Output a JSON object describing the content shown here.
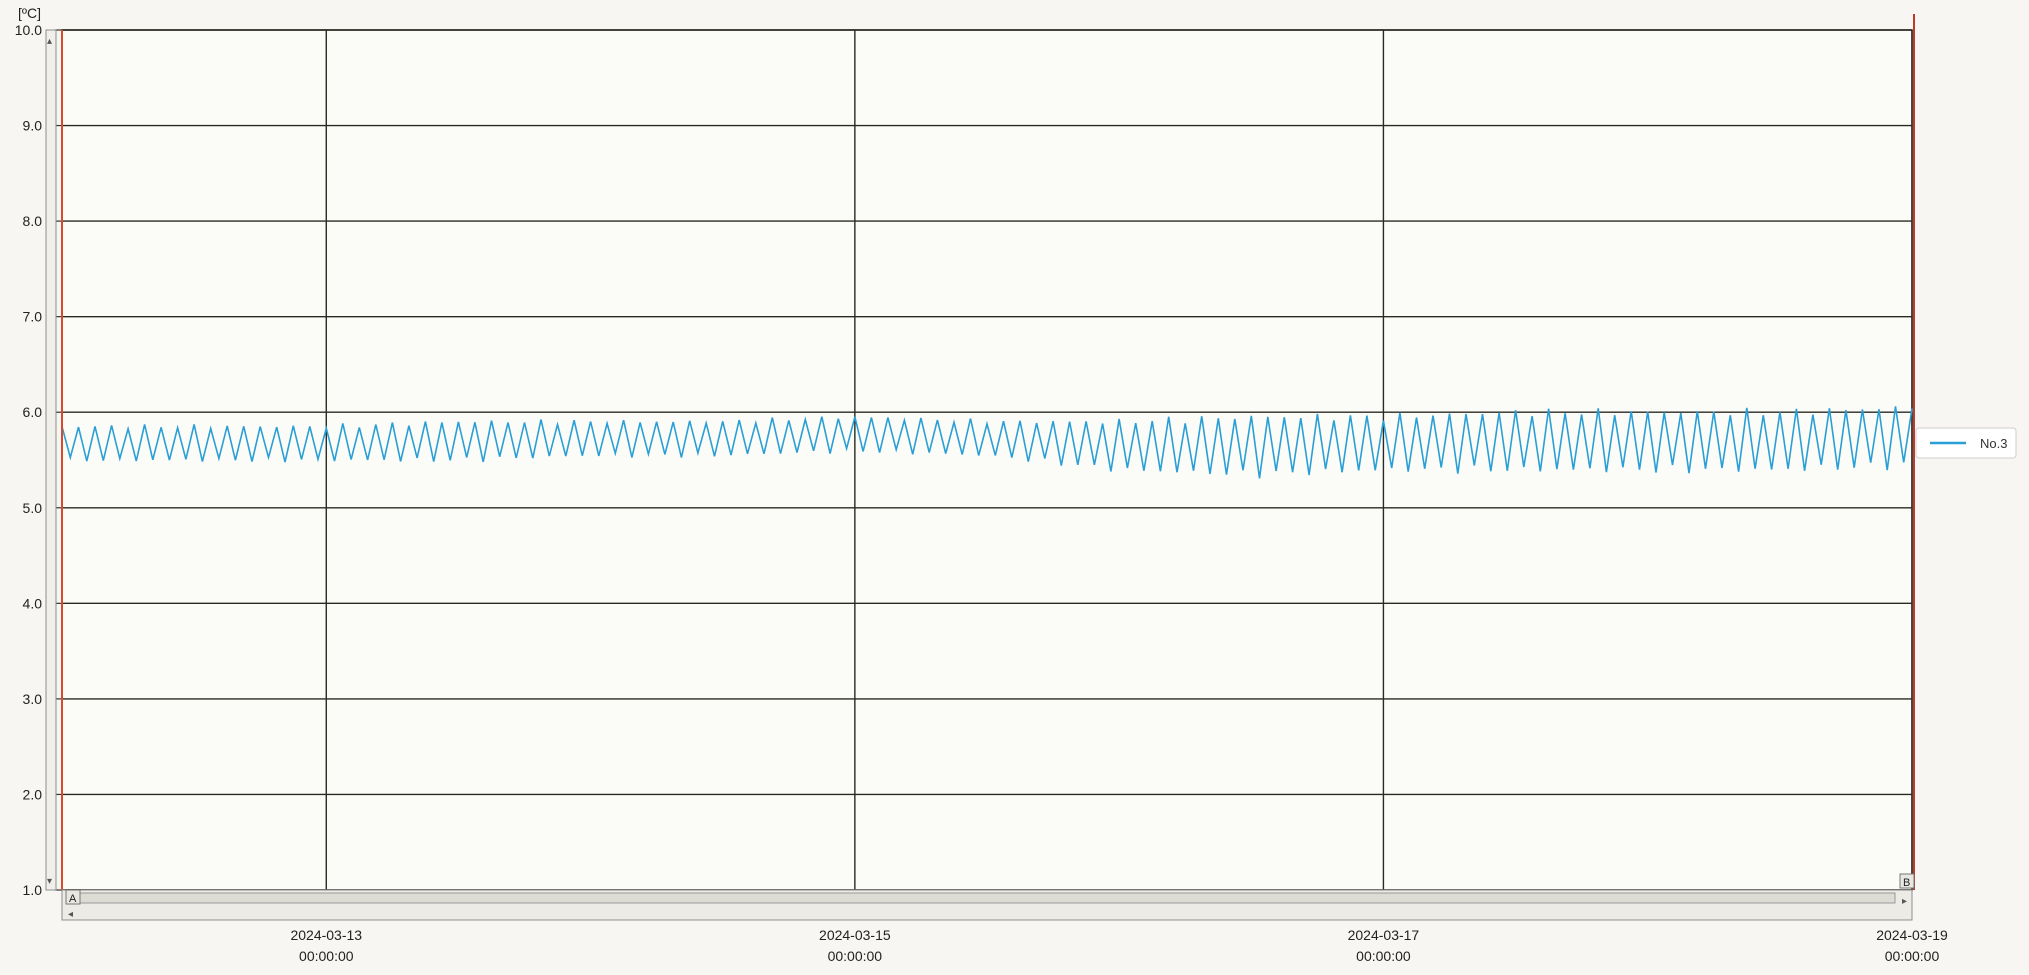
{
  "window": {
    "unit_label": "[ºC]"
  },
  "markers": {
    "left": "A",
    "right": "B"
  },
  "legend": {
    "label": "No.3"
  },
  "colors": {
    "series": "#2a9fd6",
    "left_cursor": "#d84a2a",
    "right_cursor": "#c0392b",
    "grid": "#2a2a22"
  },
  "chart_data": {
    "type": "line",
    "title": "",
    "xlabel": "",
    "ylabel": "[ºC]",
    "ylim": [
      1.0,
      10.0
    ],
    "yticks": [
      "1.0",
      "2.0",
      "3.0",
      "4.0",
      "5.0",
      "6.0",
      "7.0",
      "8.0",
      "9.0",
      "10.0"
    ],
    "xlim": [
      "2024-03-12 00:00:00",
      "2024-03-19 00:00:00"
    ],
    "xticks": [
      {
        "date": "2024-03-13",
        "time": "00:00:00"
      },
      {
        "date": "2024-03-15",
        "time": "00:00:00"
      },
      {
        "date": "2024-03-17",
        "time": "00:00:00"
      },
      {
        "date": "2024-03-19",
        "time": "00:00:00"
      }
    ],
    "grid": true,
    "legend_position": "right",
    "series": [
      {
        "name": "No.3",
        "color": "#2a9fd6",
        "x": [
          "2024-03-12 00:00",
          "2024-03-12 12:00",
          "2024-03-13 00:00",
          "2024-03-13 12:00",
          "2024-03-14 00:00",
          "2024-03-14 12:00",
          "2024-03-15 00:00",
          "2024-03-15 12:00",
          "2024-03-16 00:00",
          "2024-03-16 12:00",
          "2024-03-17 00:00",
          "2024-03-17 12:00",
          "2024-03-18 00:00",
          "2024-03-18 12:00",
          "2024-03-19 00:00"
        ],
        "y_min": [
          5.5,
          5.5,
          5.5,
          5.5,
          5.55,
          5.55,
          5.6,
          5.55,
          5.4,
          5.35,
          5.4,
          5.4,
          5.4,
          5.4,
          5.45
        ],
        "y_max": [
          5.85,
          5.85,
          5.85,
          5.9,
          5.9,
          5.9,
          5.95,
          5.9,
          5.9,
          5.95,
          5.95,
          6.0,
          6.0,
          6.0,
          6.05
        ]
      }
    ]
  }
}
